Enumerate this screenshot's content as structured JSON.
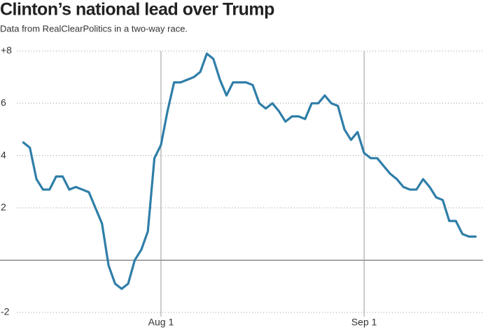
{
  "chart_data": {
    "type": "line",
    "title": "Clinton’s national lead over Trump",
    "subtitle": "Data from RealClearPolitics in a two-way race.",
    "x": [
      "Jul 11",
      "Jul 12",
      "Jul 13",
      "Jul 14",
      "Jul 15",
      "Jul 16",
      "Jul 17",
      "Jul 18",
      "Jul 19",
      "Jul 20",
      "Jul 21",
      "Jul 22",
      "Jul 23",
      "Jul 24",
      "Jul 25",
      "Jul 26",
      "Jul 27",
      "Jul 28",
      "Jul 29",
      "Jul 30",
      "Jul 31",
      "Aug 1",
      "Aug 2",
      "Aug 3",
      "Aug 4",
      "Aug 5",
      "Aug 6",
      "Aug 7",
      "Aug 8",
      "Aug 9",
      "Aug 10",
      "Aug 11",
      "Aug 12",
      "Aug 13",
      "Aug 14",
      "Aug 15",
      "Aug 16",
      "Aug 17",
      "Aug 18",
      "Aug 19",
      "Aug 20",
      "Aug 21",
      "Aug 22",
      "Aug 23",
      "Aug 24",
      "Aug 25",
      "Aug 26",
      "Aug 27",
      "Aug 28",
      "Aug 29",
      "Aug 30",
      "Aug 31",
      "Sep 1",
      "Sep 2",
      "Sep 3",
      "Sep 4",
      "Sep 5",
      "Sep 6",
      "Sep 7",
      "Sep 8",
      "Sep 9",
      "Sep 10",
      "Sep 11",
      "Sep 12",
      "Sep 13",
      "Sep 14",
      "Sep 15",
      "Sep 16",
      "Sep 17",
      "Sep 18"
    ],
    "series": [
      {
        "name": "Clinton lead",
        "color": "#2f7ea8",
        "values": [
          4.5,
          4.3,
          3.1,
          2.7,
          2.7,
          3.2,
          3.2,
          2.7,
          2.8,
          2.7,
          2.6,
          2.0,
          1.4,
          -0.2,
          -0.9,
          -1.1,
          -0.9,
          0,
          0.4,
          1.1,
          3.9,
          4.4,
          5.7,
          6.8,
          6.8,
          6.9,
          7.0,
          7.2,
          7.9,
          7.7,
          6.9,
          6.3,
          6.8,
          6.8,
          6.8,
          6.7,
          6.0,
          5.8,
          6.0,
          5.7,
          5.3,
          5.5,
          5.5,
          5.4,
          6.0,
          6.0,
          6.3,
          6.0,
          5.9,
          5.0,
          4.6,
          4.9,
          4.1,
          3.9,
          3.9,
          3.6,
          3.3,
          3.1,
          2.8,
          2.7,
          2.7,
          3.1,
          2.8,
          2.4,
          2.3,
          1.5,
          1.5,
          1.0,
          0.9,
          0.9
        ]
      }
    ],
    "xlim": [
      "Jul 10",
      "Sep 20"
    ],
    "xticks": [
      "Aug 1",
      "Sep 1"
    ],
    "ylim": [
      -2,
      8
    ],
    "yticks": [
      {
        "value": 8,
        "label": "+8"
      },
      6,
      4,
      2,
      -2
    ],
    "grid": true
  }
}
